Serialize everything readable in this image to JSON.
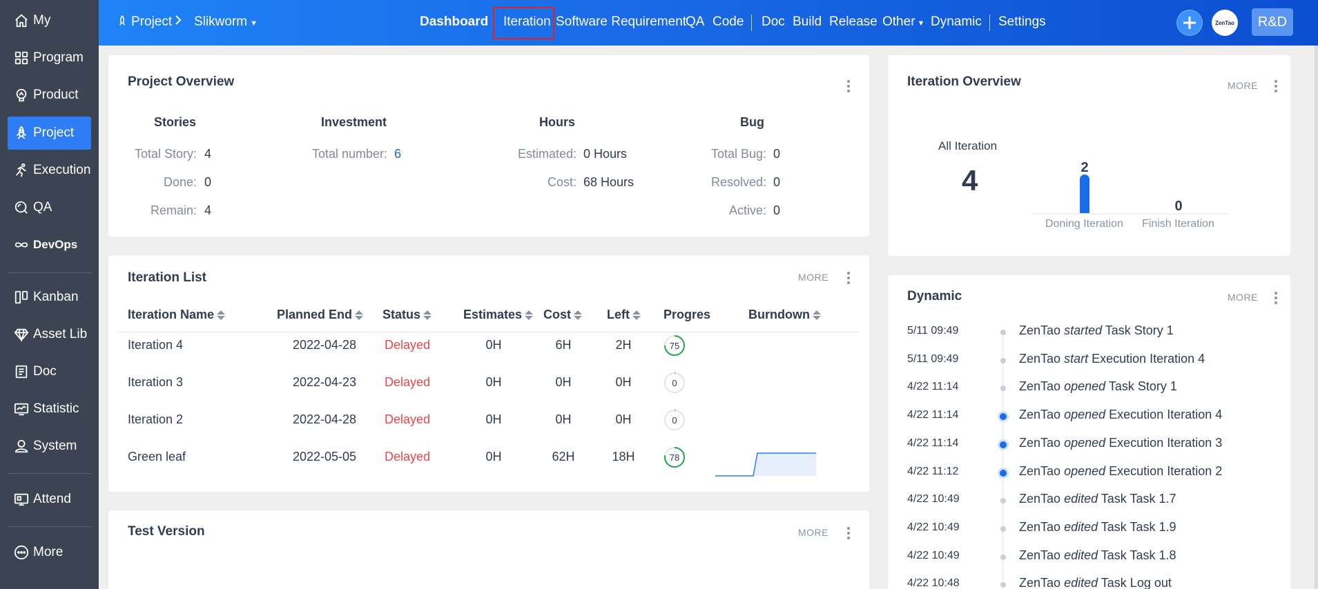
{
  "sidebar": {
    "items": [
      {
        "label": "My",
        "icon": "home-icon"
      },
      {
        "label": "Program",
        "icon": "grid-icon"
      },
      {
        "label": "Product",
        "icon": "bulb-icon"
      },
      {
        "label": "Project",
        "icon": "rocket-icon",
        "active": true
      },
      {
        "label": "Execution",
        "icon": "run-icon"
      },
      {
        "label": "QA",
        "icon": "magnifier-icon"
      },
      {
        "label": "DevOps",
        "icon": "infinity-icon"
      },
      {
        "label": "Kanban",
        "icon": "kanban-icon"
      },
      {
        "label": "Asset Lib",
        "icon": "diamond-icon"
      },
      {
        "label": "Doc",
        "icon": "doc-icon"
      },
      {
        "label": "Statistic",
        "icon": "monitor-icon"
      },
      {
        "label": "System",
        "icon": "user-icon"
      },
      {
        "label": "Attend",
        "icon": "attend-icon"
      },
      {
        "label": "More",
        "icon": "more-icon"
      }
    ]
  },
  "header": {
    "breadcrumb": {
      "root": "Project",
      "current": "Slikworm"
    },
    "nav": [
      "Dashboard",
      "Iteration",
      "Software Requirement",
      "QA",
      "Code",
      "Doc",
      "Build",
      "Release",
      "Other",
      "Dynamic",
      "Settings"
    ],
    "avatar_text": "ZenTao",
    "rd_label": "R&D",
    "accent": "#1969e6"
  },
  "project_overview": {
    "title": "Project Overview",
    "stories": {
      "heading": "Stories",
      "rows": [
        {
          "label": "Total Story:",
          "value": "4"
        },
        {
          "label": "Done:",
          "value": "0"
        },
        {
          "label": "Remain:",
          "value": "4"
        }
      ]
    },
    "investment": {
      "heading": "Investment",
      "rows": [
        {
          "label": "Total number:",
          "value": "6"
        }
      ]
    },
    "hours": {
      "heading": "Hours",
      "rows": [
        {
          "label": "Estimated:",
          "value": "0 Hours"
        },
        {
          "label": "Cost:",
          "value": "68 Hours"
        }
      ]
    },
    "bug": {
      "heading": "Bug",
      "rows": [
        {
          "label": "Total Bug:",
          "value": "0"
        },
        {
          "label": "Resolved:",
          "value": "0"
        },
        {
          "label": "Active:",
          "value": "0"
        }
      ]
    }
  },
  "iteration_list": {
    "title": "Iteration List",
    "more": "MORE",
    "columns": [
      "Iteration Name",
      "Planned End",
      "Status",
      "Estimates",
      "Cost",
      "Left",
      "Progres",
      "Burndown"
    ],
    "rows": [
      {
        "name": "Iteration 4",
        "end": "2022-04-28",
        "status": "Delayed",
        "estimates": "0H",
        "cost": "6H",
        "left": "2H",
        "progress": "75"
      },
      {
        "name": "Iteration 3",
        "end": "2022-04-23",
        "status": "Delayed",
        "estimates": "0H",
        "cost": "0H",
        "left": "0H",
        "progress": "0"
      },
      {
        "name": "Iteration 2",
        "end": "2022-04-28",
        "status": "Delayed",
        "estimates": "0H",
        "cost": "0H",
        "left": "0H",
        "progress": "0"
      },
      {
        "name": "Green leaf",
        "end": "2022-05-05",
        "status": "Delayed",
        "estimates": "0H",
        "cost": "62H",
        "left": "18H",
        "progress": "78"
      }
    ],
    "status_color": "#e5484d"
  },
  "test_version": {
    "title": "Test Version",
    "more": "MORE"
  },
  "iteration_overview": {
    "title": "Iteration Overview",
    "more": "MORE",
    "all_label": "All Iteration",
    "all_value": "4",
    "bars": [
      {
        "label": "Doning Iteration",
        "value": 2
      },
      {
        "label": "Finish Iteration",
        "value": 0
      }
    ]
  },
  "dynamic": {
    "title": "Dynamic",
    "more": "MORE",
    "items": [
      {
        "time": "5/11 09:49",
        "actor": "ZenTao",
        "action": "started",
        "object": "Task Story 1",
        "highlight": false
      },
      {
        "time": "5/11 09:49",
        "actor": "ZenTao",
        "action": "start",
        "object": "Execution Iteration 4",
        "highlight": false
      },
      {
        "time": "4/22 11:14",
        "actor": "ZenTao",
        "action": "opened",
        "object": "Task Story 1",
        "highlight": false
      },
      {
        "time": "4/22 11:14",
        "actor": "ZenTao",
        "action": "opened",
        "object": "Execution Iteration 4",
        "highlight": true
      },
      {
        "time": "4/22 11:14",
        "actor": "ZenTao",
        "action": "opened",
        "object": "Execution Iteration 3",
        "highlight": true
      },
      {
        "time": "4/22 11:12",
        "actor": "ZenTao",
        "action": "opened",
        "object": "Execution Iteration 2",
        "highlight": true
      },
      {
        "time": "4/22 10:49",
        "actor": "ZenTao",
        "action": "edited",
        "object": "Task Task 1.7",
        "highlight": false
      },
      {
        "time": "4/22 10:49",
        "actor": "ZenTao",
        "action": "edited",
        "object": "Task Task 1.9",
        "highlight": false
      },
      {
        "time": "4/22 10:49",
        "actor": "ZenTao",
        "action": "edited",
        "object": "Task Task 1.8",
        "highlight": false
      },
      {
        "time": "4/22 10:48",
        "actor": "ZenTao",
        "action": "edited",
        "object": "Task Log out",
        "highlight": false
      }
    ]
  }
}
